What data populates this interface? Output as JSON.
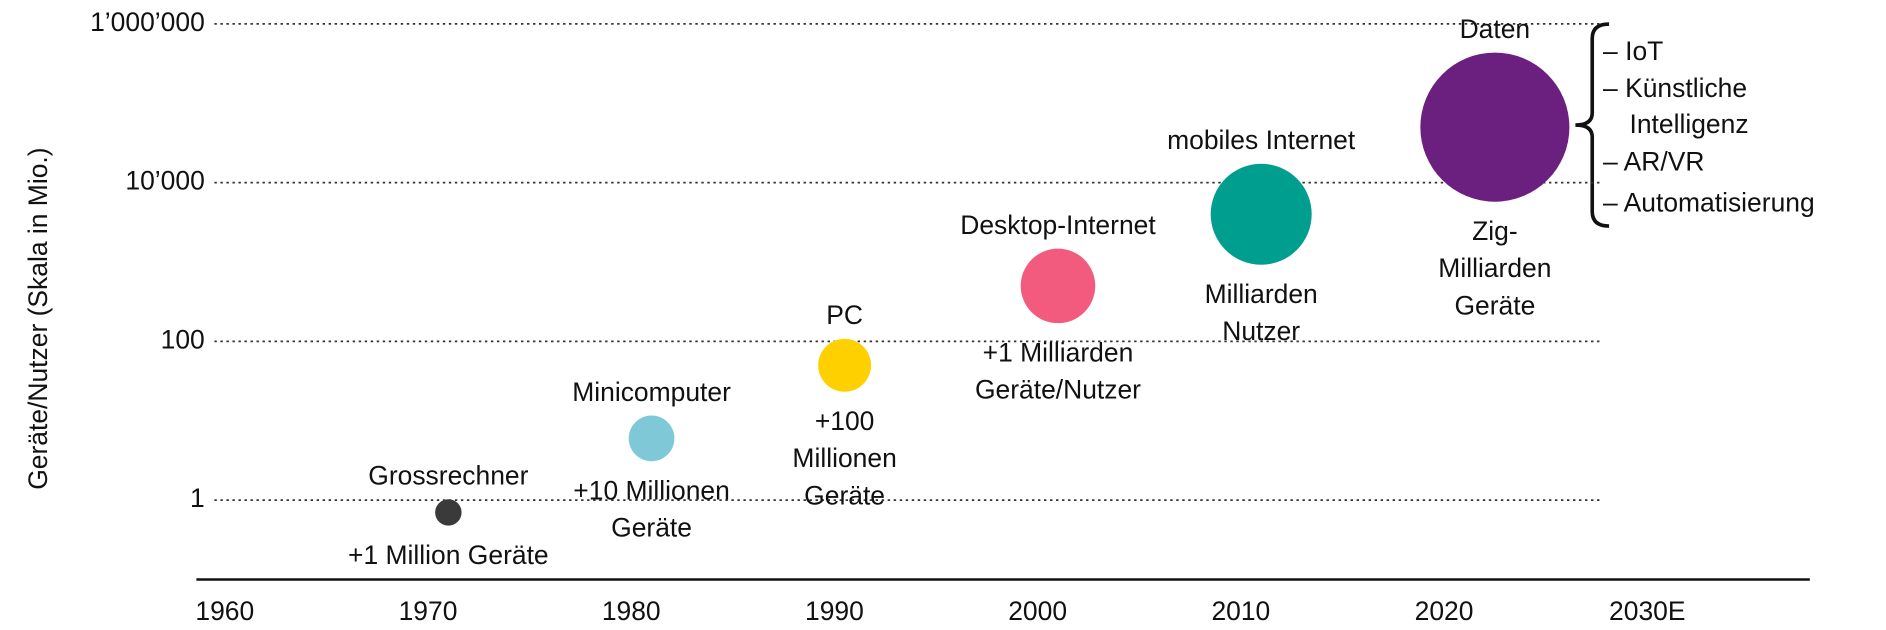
{
  "chart_data": {
    "type": "bubble",
    "y_axis_label": "Geräte/Nutzer (Skala in Mio.)",
    "log_y": true,
    "grid": true,
    "xlim": [
      1958.6,
      2038
    ],
    "xticks": [
      1960,
      1970,
      1980,
      1990,
      2000,
      2010,
      2020,
      {
        "value": 2030,
        "label": "2030E"
      }
    ],
    "ylim": [
      0.1,
      2000000
    ],
    "yticks": [
      {
        "value": 1000000,
        "label": "1’000’000"
      },
      {
        "value": 10000,
        "label": "10’000"
      },
      100,
      1
    ],
    "series": [
      {
        "x": [
          1971,
          1981,
          1990.5,
          2001,
          2011,
          2022.5
        ],
        "values": [
          0.7,
          6,
          50,
          500,
          4000,
          50000
        ],
        "sizes": [
          11,
          19,
          22,
          31,
          42,
          62
        ],
        "colors": [
          "#3a3a3a",
          "#7ec8d8",
          "#ffd000",
          "#f25a7e",
          "#009e8e",
          "#6b1f7e"
        ],
        "labels": [
          "Grossrechner",
          "Minicomputer",
          "PC",
          "Desktop-Internet",
          "mobiles Internet",
          "Daten"
        ],
        "descriptions": [
          [
            "+1 Million Geräte"
          ],
          [
            "+10 Millionen",
            "Geräte"
          ],
          [
            "+100",
            "Millionen",
            "Geräte"
          ],
          [
            "+1 Milliarden",
            "Geräte/Nutzer"
          ],
          [
            "Milliarden",
            "Nutzer"
          ],
          [
            "Zig-",
            "Milliarden",
            "Geräte"
          ]
        ]
      }
    ],
    "annotation_list": [
      [
        "– IoT"
      ],
      [
        "– Künstliche",
        "Intelligenz"
      ],
      [
        "– AR/VR"
      ],
      [
        "– Automatisierung"
      ]
    ]
  }
}
